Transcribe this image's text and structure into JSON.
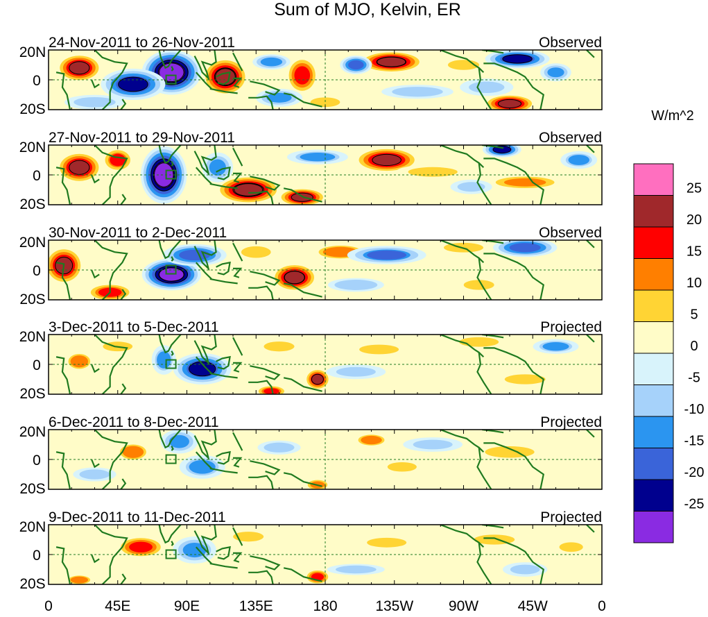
{
  "figure": {
    "title": "Sum of MJO, Kelvin, ER",
    "colorbar_units": "W/m^2",
    "colorbar_ticks": [
      "25",
      "20",
      "15",
      "10",
      "5",
      "0",
      "-5",
      "-10",
      "-15",
      "-20",
      "-25"
    ],
    "colorbar_colors": [
      "#ff6fbf",
      "#a0282b",
      "#ff0000",
      "#ff7f00",
      "#ffd434",
      "#fffcc8",
      "#d8f3fb",
      "#a6d2fa",
      "#2b95f0",
      "#3a64d9",
      "#00008e",
      "#8a2be2"
    ],
    "lat_labels": [
      "20N",
      "0",
      "20S"
    ],
    "lon_labels": [
      "0",
      "45E",
      "90E",
      "135E",
      "180",
      "135W",
      "90W",
      "45W",
      "0"
    ],
    "land_color": "#1f7a1f",
    "equator_color": "#1f7a1f"
  },
  "panels": [
    {
      "date_range": "24-Nov-2011 to 26-Nov-2011",
      "status": "Observed",
      "blobs": [
        {
          "lon": 80,
          "lat": 5,
          "val": -29,
          "rx": 18,
          "ry": 14
        },
        {
          "lon": 55,
          "lat": -3,
          "val": -20,
          "rx": 20,
          "ry": 10
        },
        {
          "lon": 20,
          "lat": 8,
          "val": 22,
          "rx": 14,
          "ry": 9
        },
        {
          "lon": 115,
          "lat": 2,
          "val": 24,
          "rx": 14,
          "ry": 12
        },
        {
          "lon": 165,
          "lat": 3,
          "val": 18,
          "rx": 10,
          "ry": 12
        },
        {
          "lon": 150,
          "lat": -12,
          "val": -12,
          "rx": 15,
          "ry": 6
        },
        {
          "lon": 145,
          "lat": 12,
          "val": -14,
          "rx": 12,
          "ry": 5
        },
        {
          "lon": 223,
          "lat": 12,
          "val": 23,
          "rx": 20,
          "ry": 7
        },
        {
          "lon": 200,
          "lat": 10,
          "val": -18,
          "rx": 10,
          "ry": 6
        },
        {
          "lon": 305,
          "lat": 14,
          "val": -20,
          "rx": 20,
          "ry": 6
        },
        {
          "lon": 300,
          "lat": -16,
          "val": 22,
          "rx": 16,
          "ry": 6
        },
        {
          "lon": 285,
          "lat": -5,
          "val": -8,
          "rx": 18,
          "ry": 6
        },
        {
          "lon": 270,
          "lat": 10,
          "val": 9,
          "rx": 15,
          "ry": 5
        },
        {
          "lon": 240,
          "lat": -8,
          "val": -6,
          "rx": 25,
          "ry": 5
        },
        {
          "lon": 330,
          "lat": 5,
          "val": -12,
          "rx": 10,
          "ry": 6
        },
        {
          "lon": 30,
          "lat": -15,
          "val": -9,
          "rx": 20,
          "ry": 5
        },
        {
          "lon": 180,
          "lat": -15,
          "val": 8,
          "rx": 15,
          "ry": 5
        }
      ]
    },
    {
      "date_range": "27-Nov-2011 to 29-Nov-2011",
      "status": "Observed",
      "blobs": [
        {
          "lon": 75,
          "lat": 0,
          "val": -29,
          "rx": 14,
          "ry": 18
        },
        {
          "lon": 20,
          "lat": 5,
          "val": 22,
          "rx": 14,
          "ry": 10
        },
        {
          "lon": 45,
          "lat": 10,
          "val": 15,
          "rx": 10,
          "ry": 8
        },
        {
          "lon": 130,
          "lat": -10,
          "val": 24,
          "rx": 20,
          "ry": 9
        },
        {
          "lon": 165,
          "lat": -15,
          "val": 22,
          "rx": 15,
          "ry": 6
        },
        {
          "lon": 220,
          "lat": 10,
          "val": 22,
          "rx": 20,
          "ry": 8
        },
        {
          "lon": 175,
          "lat": 12,
          "val": -10,
          "rx": 20,
          "ry": 5
        },
        {
          "lon": 110,
          "lat": 5,
          "val": -12,
          "rx": 10,
          "ry": 10
        },
        {
          "lon": 295,
          "lat": 17,
          "val": -20,
          "rx": 12,
          "ry": 5
        },
        {
          "lon": 310,
          "lat": -5,
          "val": 12,
          "rx": 25,
          "ry": 5
        },
        {
          "lon": 275,
          "lat": -8,
          "val": -8,
          "rx": 14,
          "ry": 5
        },
        {
          "lon": 250,
          "lat": 2,
          "val": 8,
          "rx": 25,
          "ry": 5
        },
        {
          "lon": 345,
          "lat": 10,
          "val": -10,
          "rx": 12,
          "ry": 6
        }
      ]
    },
    {
      "date_range": "30-Nov-2011 to 2-Dec-2011",
      "status": "Observed",
      "blobs": [
        {
          "lon": 80,
          "lat": -3,
          "val": -28,
          "rx": 18,
          "ry": 10
        },
        {
          "lon": 95,
          "lat": 10,
          "val": -18,
          "rx": 20,
          "ry": 7
        },
        {
          "lon": 10,
          "lat": 3,
          "val": 22,
          "rx": 12,
          "ry": 12
        },
        {
          "lon": 40,
          "lat": -15,
          "val": 16,
          "rx": 15,
          "ry": 6
        },
        {
          "lon": 160,
          "lat": -5,
          "val": 23,
          "rx": 14,
          "ry": 9
        },
        {
          "lon": 190,
          "lat": 12,
          "val": 10,
          "rx": 20,
          "ry": 6
        },
        {
          "lon": 220,
          "lat": 10,
          "val": -15,
          "rx": 25,
          "ry": 6
        },
        {
          "lon": 270,
          "lat": 15,
          "val": 8,
          "rx": 20,
          "ry": 5
        },
        {
          "lon": 310,
          "lat": 15,
          "val": -18,
          "rx": 20,
          "ry": 6
        },
        {
          "lon": 135,
          "lat": 12,
          "val": 8,
          "rx": 15,
          "ry": 6
        },
        {
          "lon": 200,
          "lat": -10,
          "val": -5,
          "rx": 20,
          "ry": 5
        },
        {
          "lon": 280,
          "lat": -10,
          "val": 6,
          "rx": 15,
          "ry": 5
        }
      ]
    },
    {
      "date_range": "3-Dec-2011 to 5-Dec-2011",
      "status": "Projected",
      "blobs": [
        {
          "lon": 100,
          "lat": -3,
          "val": -20,
          "rx": 18,
          "ry": 10
        },
        {
          "lon": 75,
          "lat": 3,
          "val": -10,
          "rx": 8,
          "ry": 10
        },
        {
          "lon": 45,
          "lat": 12,
          "val": 8,
          "rx": 15,
          "ry": 5
        },
        {
          "lon": 20,
          "lat": 2,
          "val": 10,
          "rx": 10,
          "ry": 7
        },
        {
          "lon": 175,
          "lat": -10,
          "val": 20,
          "rx": 8,
          "ry": 7
        },
        {
          "lon": 145,
          "lat": -18,
          "val": 16,
          "rx": 10,
          "ry": 4
        },
        {
          "lon": 150,
          "lat": 12,
          "val": 6,
          "rx": 15,
          "ry": 5
        },
        {
          "lon": 215,
          "lat": 10,
          "val": 8,
          "rx": 20,
          "ry": 5
        },
        {
          "lon": 200,
          "lat": -5,
          "val": -8,
          "rx": 20,
          "ry": 5
        },
        {
          "lon": 280,
          "lat": 15,
          "val": 8,
          "rx": 20,
          "ry": 5
        },
        {
          "lon": 330,
          "lat": 12,
          "val": -10,
          "rx": 15,
          "ry": 5
        },
        {
          "lon": 310,
          "lat": -10,
          "val": 6,
          "rx": 20,
          "ry": 5
        }
      ]
    },
    {
      "date_range": "6-Dec-2011 to 8-Dec-2011",
      "status": "Projected",
      "blobs": [
        {
          "lon": 85,
          "lat": 12,
          "val": -12,
          "rx": 12,
          "ry": 8
        },
        {
          "lon": 100,
          "lat": -5,
          "val": -10,
          "rx": 15,
          "ry": 8
        },
        {
          "lon": 55,
          "lat": 5,
          "val": 10,
          "rx": 12,
          "ry": 7
        },
        {
          "lon": 30,
          "lat": -10,
          "val": -6,
          "rx": 15,
          "ry": 5
        },
        {
          "lon": 175,
          "lat": -17,
          "val": 14,
          "rx": 8,
          "ry": 4
        },
        {
          "lon": 210,
          "lat": 13,
          "val": 10,
          "rx": 12,
          "ry": 5
        },
        {
          "lon": 230,
          "lat": -5,
          "val": 7,
          "rx": 15,
          "ry": 5
        },
        {
          "lon": 300,
          "lat": 5,
          "val": 8,
          "rx": 25,
          "ry": 6
        },
        {
          "lon": 250,
          "lat": 10,
          "val": -8,
          "rx": 20,
          "ry": 5
        },
        {
          "lon": 150,
          "lat": 8,
          "val": -6,
          "rx": 15,
          "ry": 5
        }
      ]
    },
    {
      "date_range": "9-Dec-2011 to 11-Dec-2011",
      "status": "Projected",
      "blobs": [
        {
          "lon": 60,
          "lat": 5,
          "val": 18,
          "rx": 15,
          "ry": 7
        },
        {
          "lon": 95,
          "lat": 3,
          "val": -12,
          "rx": 14,
          "ry": 9
        },
        {
          "lon": 20,
          "lat": -17,
          "val": 10,
          "rx": 10,
          "ry": 4
        },
        {
          "lon": 175,
          "lat": -15,
          "val": 18,
          "rx": 8,
          "ry": 5
        },
        {
          "lon": 130,
          "lat": 12,
          "val": 6,
          "rx": 15,
          "ry": 5
        },
        {
          "lon": 220,
          "lat": 8,
          "val": 8,
          "rx": 20,
          "ry": 5
        },
        {
          "lon": 200,
          "lat": -10,
          "val": -6,
          "rx": 20,
          "ry": 4
        },
        {
          "lon": 290,
          "lat": 10,
          "val": 6,
          "rx": 20,
          "ry": 5
        },
        {
          "lon": 310,
          "lat": -10,
          "val": -8,
          "rx": 15,
          "ry": 5
        },
        {
          "lon": 340,
          "lat": 5,
          "val": 8,
          "rx": 12,
          "ry": 5
        }
      ]
    }
  ]
}
